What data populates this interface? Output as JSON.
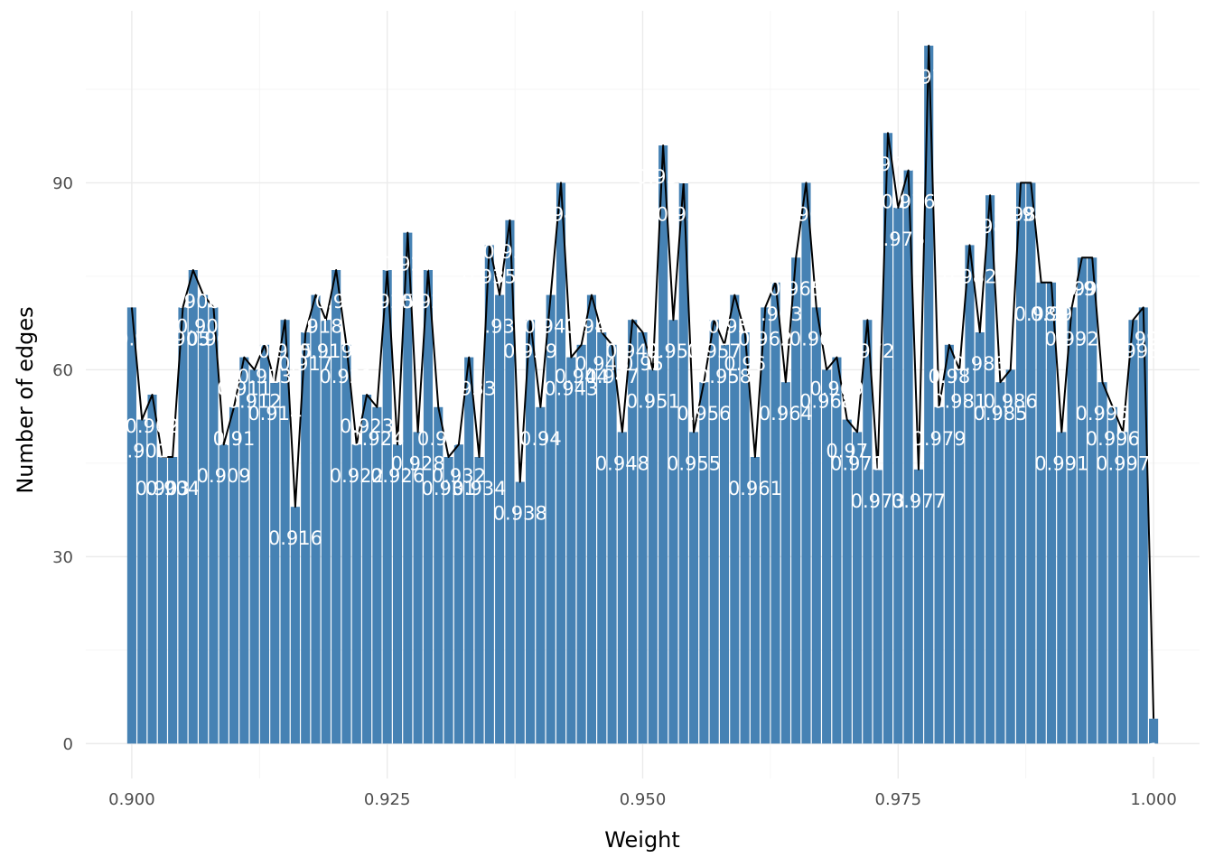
{
  "chart_data": {
    "type": "bar",
    "xlabel": "Weight",
    "ylabel": "Number of edges",
    "xlim": [
      0.8955,
      1.0045
    ],
    "ylim": [
      -5.6,
      117.6
    ],
    "x_ticks": [
      0.9,
      0.925,
      0.95,
      0.975,
      1.0
    ],
    "x_tick_labels": [
      "0.900",
      "0.925",
      "0.950",
      "0.975",
      "1.000"
    ],
    "y_ticks": [
      0,
      30,
      60,
      90
    ],
    "y_tick_labels": [
      "0",
      "30",
      "60",
      "90"
    ],
    "grid": true,
    "bar_color": "#4682b4",
    "line_color": "#000000",
    "bin_width": 0.001,
    "x": [
      0.9,
      0.901,
      0.902,
      0.903,
      0.904,
      0.905,
      0.906,
      0.907,
      0.908,
      0.909,
      0.91,
      0.911,
      0.912,
      0.913,
      0.914,
      0.915,
      0.916,
      0.917,
      0.918,
      0.919,
      0.92,
      0.921,
      0.922,
      0.923,
      0.924,
      0.925,
      0.926,
      0.927,
      0.928,
      0.929,
      0.93,
      0.931,
      0.932,
      0.933,
      0.934,
      0.935,
      0.936,
      0.937,
      0.938,
      0.939,
      0.94,
      0.941,
      0.942,
      0.943,
      0.944,
      0.945,
      0.946,
      0.947,
      0.948,
      0.949,
      0.95,
      0.951,
      0.952,
      0.953,
      0.954,
      0.955,
      0.956,
      0.957,
      0.958,
      0.959,
      0.96,
      0.961,
      0.962,
      0.963,
      0.964,
      0.965,
      0.966,
      0.967,
      0.968,
      0.969,
      0.97,
      0.971,
      0.972,
      0.973,
      0.974,
      0.975,
      0.976,
      0.977,
      0.978,
      0.979,
      0.98,
      0.981,
      0.982,
      0.983,
      0.984,
      0.985,
      0.986,
      0.987,
      0.988,
      0.989,
      0.99,
      0.991,
      0.992,
      0.993,
      0.994,
      0.995,
      0.996,
      0.997,
      0.998,
      0.999,
      1.0
    ],
    "values": [
      70,
      52,
      56,
      46,
      46,
      70,
      76,
      72,
      70,
      48,
      54,
      62,
      60,
      64,
      58,
      68,
      38,
      66,
      72,
      68,
      76,
      64,
      48,
      56,
      54,
      76,
      48,
      82,
      50,
      76,
      54,
      46,
      48,
      62,
      46,
      80,
      72,
      84,
      42,
      68,
      54,
      72,
      90,
      62,
      64,
      72,
      66,
      64,
      50,
      68,
      66,
      60,
      96,
      68,
      90,
      50,
      58,
      68,
      64,
      72,
      66,
      46,
      70,
      74,
      58,
      78,
      90,
      70,
      60,
      62,
      52,
      50,
      68,
      44,
      98,
      86,
      92,
      44,
      112,
      54,
      64,
      60,
      80,
      66,
      88,
      58,
      60,
      90,
      90,
      74,
      74,
      50,
      70,
      78,
      78,
      58,
      54,
      50,
      68,
      70,
      4
    ],
    "labels": [
      "0.9",
      "0.901",
      "0.902",
      "0.903",
      "0.904",
      "0.905",
      "0.906",
      "0.907",
      "0.908",
      "0.909",
      "0.91",
      "0.911",
      "0.912",
      "0.913",
      "0.914",
      "0.915",
      "0.916",
      "0.917",
      "0.918",
      "0.919",
      "0.92",
      "0.921",
      "0.922",
      "0.923",
      "0.924",
      "0.925",
      "0.926",
      "0.927",
      "0.928",
      "0.929",
      "0.93",
      "0.931",
      "0.932",
      "0.933",
      "0.934",
      "0.935",
      "0.936",
      "0.937",
      "0.938",
      "0.939",
      "0.94",
      "0.941",
      "0.942",
      "0.943",
      "0.944",
      "0.945",
      "0.946",
      "0.947",
      "0.948",
      "0.949",
      "0.95",
      "0.951",
      "0.952",
      "0.953",
      "0.954",
      "0.955",
      "0.956",
      "0.957",
      "0.958",
      "0.959",
      "0.96",
      "0.961",
      "0.962",
      "0.963",
      "0.964",
      "0.965",
      "0.966",
      "0.967",
      "0.968",
      "0.969",
      "0.97",
      "0.971",
      "0.972",
      "0.973",
      "0.974",
      "0.975",
      "0.976",
      "0.977",
      "0.978",
      "0.979",
      "0.98",
      "0.981",
      "0.982",
      "0.983",
      "0.984",
      "0.985",
      "0.986",
      "0.987",
      "0.988",
      "0.989",
      "0.99",
      "0.991",
      "0.992",
      "0.993",
      "0.994",
      "0.995",
      "0.996",
      "0.997",
      "0.998",
      "0.999",
      "1"
    ]
  }
}
